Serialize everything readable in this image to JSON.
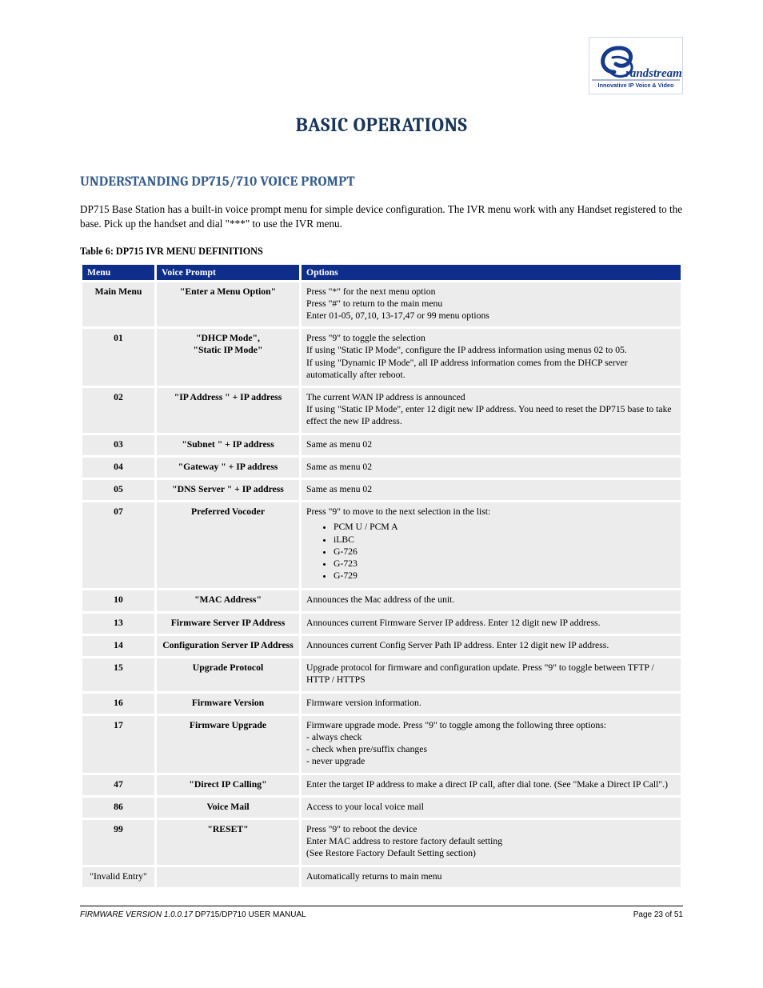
{
  "logo": {
    "brand_script": "G",
    "brand_text": "randstream",
    "tagline": "Innovative IP Voice & Video",
    "accent_color": "#14398f"
  },
  "title": "BASIC OPERATIONS",
  "section": "UNDERSTANDING DP715/710 VOICE PROMPT",
  "intro": "DP715 Base Station has a built-in voice prompt menu for simple device configuration. The IVR menu work with any Handset registered to the base. Pick up the handset and dial \"***\" to use the IVR menu.",
  "table_caption": "Table 6: DP715 IVR MENU DEFINITIONS",
  "columns": [
    "Menu",
    "Voice Prompt",
    "Options"
  ],
  "rows": [
    {
      "menu": "Main Menu",
      "prompt": "\"Enter a Menu Option\"",
      "opts_lines": [
        "Press \"*\" for the next menu option",
        "Press \"#\" to return to the main menu",
        "Enter 01-05, 07,10, 13-17,47 or 99 menu options"
      ]
    },
    {
      "menu": "01",
      "prompt": "\"DHCP Mode\",\n\"Static IP Mode\"",
      "opts_lines": [
        "Press \"9\" to toggle the selection",
        "If using \"Static IP Mode\", configure the IP address information using menus 02 to 05.",
        "If using \"Dynamic IP Mode\", all IP address information comes from the DHCP server automatically after reboot."
      ]
    },
    {
      "menu": "02",
      "prompt": "\"IP Address \" + IP address",
      "opts_lines": [
        "The current WAN IP address is announced",
        "If using \"Static IP Mode\", enter 12 digit new IP address. You need to reset the DP715 base to take effect the new IP address."
      ]
    },
    {
      "menu": "03",
      "prompt": "\"Subnet \" + IP address",
      "opts_lines": [
        "Same as menu 02"
      ]
    },
    {
      "menu": "04",
      "prompt": "\"Gateway \" + IP address",
      "opts_lines": [
        "Same as menu 02"
      ]
    },
    {
      "menu": "05",
      "prompt": "\"DNS Server \" + IP address",
      "opts_lines": [
        "Same as menu 02"
      ]
    },
    {
      "menu": "07",
      "prompt": "Preferred Vocoder",
      "opts_lines": [
        "Press \"9\" to move to the next selection in the list:"
      ],
      "bullets": [
        "PCM U / PCM A",
        "iLBC",
        "G-726",
        "G-723",
        "G-729"
      ]
    },
    {
      "menu": "10",
      "prompt": "\"MAC Address\"",
      "opts_lines": [
        "Announces the Mac address of the unit."
      ]
    },
    {
      "menu": "13",
      "prompt": "Firmware Server IP Address",
      "opts_lines": [
        "Announces current Firmware Server IP address. Enter 12 digit new IP address."
      ]
    },
    {
      "menu": "14",
      "prompt": "Configuration Server IP Address",
      "opts_lines": [
        "Announces current Config Server Path IP address. Enter 12 digit new IP address."
      ]
    },
    {
      "menu": "15",
      "prompt": "Upgrade Protocol",
      "opts_lines": [
        "Upgrade protocol for firmware and configuration update. Press \"9\" to toggle between TFTP / HTTP / HTTPS"
      ]
    },
    {
      "menu": "16",
      "prompt": "Firmware Version",
      "opts_lines": [
        "Firmware version information."
      ]
    },
    {
      "menu": "17",
      "prompt": "Firmware Upgrade",
      "opts_lines": [
        "Firmware upgrade mode. Press \"9\" to toggle among the following three options:",
        "- always check",
        "- check when pre/suffix changes",
        "- never upgrade"
      ]
    },
    {
      "menu": "47",
      "prompt": "\"Direct IP Calling\"",
      "opts_lines": [
        "Enter the target IP address to make a direct IP call, after dial tone. (See \"Make a Direct IP Call\".)"
      ]
    },
    {
      "menu": "86",
      "prompt": "Voice Mail",
      "opts_lines": [
        "Access to your local voice mail"
      ]
    },
    {
      "menu": "99",
      "prompt": "\"RESET\"",
      "opts_lines": [
        "Press \"9\" to reboot the device",
        "Enter MAC address to restore factory default setting",
        "(See Restore Factory Default Setting section)"
      ]
    },
    {
      "menu": "\"Invalid Entry\"",
      "prompt": "",
      "opts_lines": [
        "Automatically returns to main menu"
      ],
      "col1_bold": false
    }
  ],
  "colors": {
    "title": "#17365b",
    "section": "#365f91",
    "header_bg": "#0f2e8c",
    "cell_bg": "#ececec"
  },
  "footer": {
    "left_line1_italic": "FIRMWARE VERSION 1.0.0.17",
    "left_line1_rest": " DP715/DP710 USER MANUAL",
    "left_line2": "",
    "right_line1": "Page 23 of 51",
    "right_line2": ""
  }
}
